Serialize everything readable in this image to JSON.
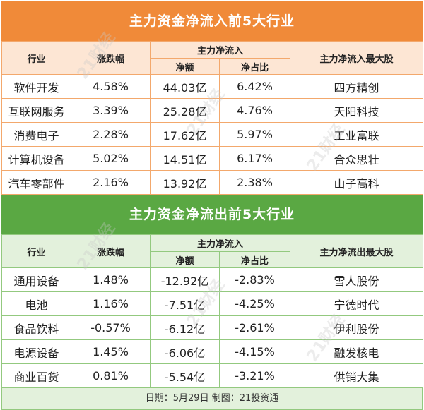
{
  "inflow": {
    "title": "主力资金净流入前5大行业",
    "headers": {
      "industry": "行业",
      "change": "涨跌幅",
      "group": "主力净流入",
      "net": "净额",
      "ratio": "净占比",
      "top_stock": "主力净流入最大股"
    },
    "rows": [
      {
        "industry": "软件开发",
        "change": "4.58%",
        "net": "44.03亿",
        "ratio": "6.42%",
        "stock": "四方精创"
      },
      {
        "industry": "互联网服务",
        "change": "3.39%",
        "net": "25.28亿",
        "ratio": "4.76%",
        "stock": "天阳科技"
      },
      {
        "industry": "消费电子",
        "change": "2.28%",
        "net": "17.62亿",
        "ratio": "5.97%",
        "stock": "工业富联"
      },
      {
        "industry": "计算机设备",
        "change": "5.02%",
        "net": "14.51亿",
        "ratio": "6.17%",
        "stock": "合众思壮"
      },
      {
        "industry": "汽车零部件",
        "change": "2.16%",
        "net": "13.92亿",
        "ratio": "2.38%",
        "stock": "山子高科"
      }
    ]
  },
  "outflow": {
    "title": "主力资金净流出前5大行业",
    "headers": {
      "industry": "行业",
      "change": "涨跌幅",
      "group": "主力净流入",
      "net": "净额",
      "ratio": "净占比",
      "top_stock": "主力净流出最大股"
    },
    "rows": [
      {
        "industry": "通用设备",
        "change": "1.48%",
        "net": "-12.92亿",
        "ratio": "-2.83%",
        "stock": "雪人股份"
      },
      {
        "industry": "电池",
        "change": "1.16%",
        "net": "-7.51亿",
        "ratio": "-4.25%",
        "stock": "宁德时代"
      },
      {
        "industry": "食品饮料",
        "change": "-0.57%",
        "net": "-6.12亿",
        "ratio": "-2.61%",
        "stock": "伊利股份"
      },
      {
        "industry": "电源设备",
        "change": "1.45%",
        "net": "-6.06亿",
        "ratio": "-4.15%",
        "stock": "融发核电"
      },
      {
        "industry": "商业百货",
        "change": "0.81%",
        "net": "-5.54亿",
        "ratio": "-3.21%",
        "stock": "供销大集"
      }
    ]
  },
  "footer": "日期：5月29日 制图：21投资通",
  "watermark": "21财经",
  "colors": {
    "inflow_banner": "#f08a39",
    "inflow_header": "#fde6d4",
    "outflow_banner": "#5aa843",
    "outflow_header": "#e3f1dc"
  }
}
